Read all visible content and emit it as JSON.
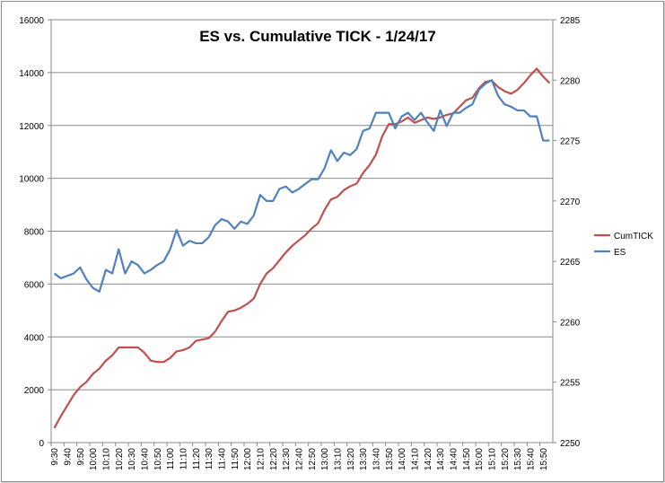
{
  "chart_data": {
    "type": "line",
    "title": "ES vs. Cumulative TICK - 1/24/17",
    "legend_position": "right",
    "grid": true,
    "left_axis": {
      "ylim": [
        0,
        16000
      ],
      "ticks": [
        0,
        2000,
        4000,
        6000,
        8000,
        10000,
        12000,
        14000,
        16000
      ],
      "tick_labels": [
        "0",
        "2000",
        "4000",
        "6000",
        "8000",
        "10000",
        "12000",
        "14000",
        "16000"
      ]
    },
    "right_axis": {
      "ylim": [
        2250,
        2285
      ],
      "ticks": [
        2250,
        2255,
        2260,
        2265,
        2270,
        2275,
        2280,
        2285
      ],
      "tick_labels": [
        "2250",
        "2255",
        "2260",
        "2265",
        "2270",
        "2275",
        "2280",
        "2285"
      ]
    },
    "x_tick_labels": [
      "9:30",
      "9:40",
      "9:50",
      "10:00",
      "10:10",
      "10:20",
      "10:30",
      "10:40",
      "10:50",
      "11:00",
      "11:10",
      "11:20",
      "11:30",
      "11:40",
      "11:50",
      "12:00",
      "12:10",
      "12:20",
      "12:30",
      "12:40",
      "12:50",
      "13:00",
      "13:10",
      "13:20",
      "13:30",
      "13:40",
      "13:50",
      "14:00",
      "14:10",
      "14:20",
      "14:30",
      "14:40",
      "14:50",
      "15:00",
      "15:10",
      "15:20",
      "15:30",
      "15:40",
      "15:50"
    ],
    "series": [
      {
        "name": "CumTICK",
        "axis": "left",
        "color": "#c0504d",
        "values": [
          550,
          1000,
          1400,
          1800,
          2100,
          2300,
          2600,
          2800,
          3100,
          3300,
          3600,
          3600,
          3600,
          3600,
          3400,
          3100,
          3050,
          3050,
          3200,
          3450,
          3500,
          3600,
          3850,
          3900,
          3950,
          4200,
          4600,
          4950,
          5000,
          5100,
          5250,
          5450,
          6000,
          6400,
          6600,
          6900,
          7200,
          7450,
          7650,
          7850,
          8100,
          8300,
          8800,
          9200,
          9300,
          9550,
          9700,
          9800,
          10200,
          10500,
          10900,
          11600,
          12050,
          12050,
          12150,
          12300,
          12100,
          12200,
          12300,
          12250,
          12300,
          12400,
          12450,
          12700,
          12950,
          13050,
          13400,
          13650,
          13700,
          13450,
          13300,
          13200,
          13350,
          13600,
          13900,
          14150,
          13850,
          13600
        ]
      },
      {
        "name": "ES",
        "axis": "right",
        "color": "#4f81bd",
        "values": [
          2264,
          2263.6,
          2263.8,
          2264,
          2264.5,
          2263.5,
          2262.8,
          2262.5,
          2264.3,
          2264,
          2266,
          2264,
          2265,
          2264.7,
          2264,
          2264.3,
          2264.7,
          2265,
          2266,
          2267.6,
          2266.3,
          2266.7,
          2266.5,
          2266.5,
          2267,
          2268,
          2268.5,
          2268.3,
          2267.7,
          2268.3,
          2268.1,
          2268.8,
          2270.5,
          2270,
          2270,
          2271,
          2271.2,
          2270.7,
          2271,
          2271.4,
          2271.8,
          2271.8,
          2272.7,
          2274.2,
          2273.3,
          2274,
          2273.8,
          2274.3,
          2275.8,
          2276,
          2277.3,
          2277.3,
          2277.3,
          2276,
          2277,
          2277.3,
          2276.7,
          2277.3,
          2276.5,
          2275.8,
          2277.5,
          2276.2,
          2277.3,
          2277.3,
          2277.7,
          2278,
          2279.2,
          2279.7,
          2280,
          2278.7,
          2278,
          2277.8,
          2277.5,
          2277.5,
          2277,
          2277,
          2275,
          2275
        ]
      }
    ]
  }
}
